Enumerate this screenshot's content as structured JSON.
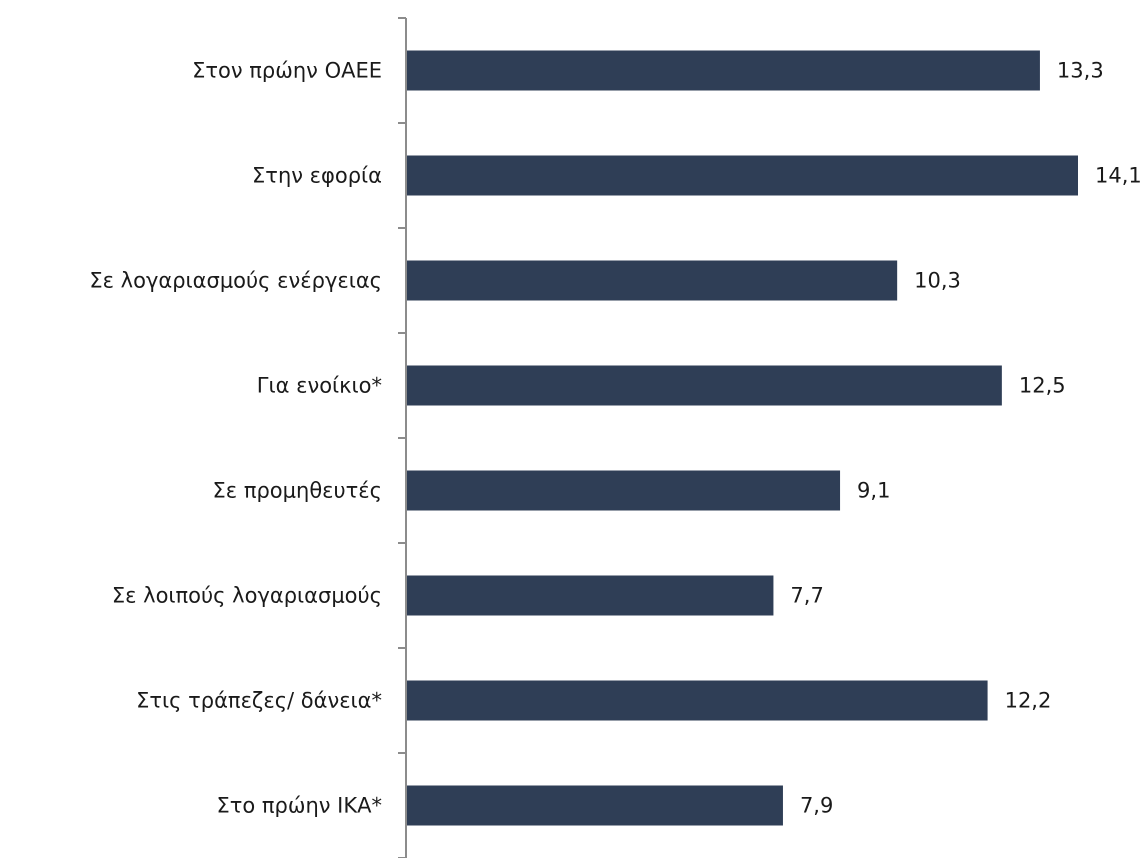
{
  "chart_data": {
    "type": "bar",
    "orientation": "horizontal",
    "categories": [
      "Στον πρώην ΟΑΕΕ",
      "Στην εφορία",
      "Σε λογαριασμούς ενέργειας",
      "Για ενοίκιο*",
      "Σε προμηθευτές",
      "Σε λοιπούς λογαριασμούς",
      "Στις τράπεζες/ δάνεια*",
      "Στο πρώην ΙΚΑ*"
    ],
    "values": [
      13.3,
      14.1,
      10.3,
      12.5,
      9.1,
      7.7,
      12.2,
      7.9
    ],
    "value_labels": [
      "13,3",
      "14,1",
      "10,3",
      "12,5",
      "9,1",
      "7,7",
      "12,2",
      "7,9"
    ],
    "title": "",
    "xlabel": "",
    "ylabel": "",
    "xlim": [
      0,
      14.1
    ],
    "grid": false,
    "legend": "none",
    "bar_color": "#2f3e56",
    "axis_color": "#8c8c8c"
  }
}
